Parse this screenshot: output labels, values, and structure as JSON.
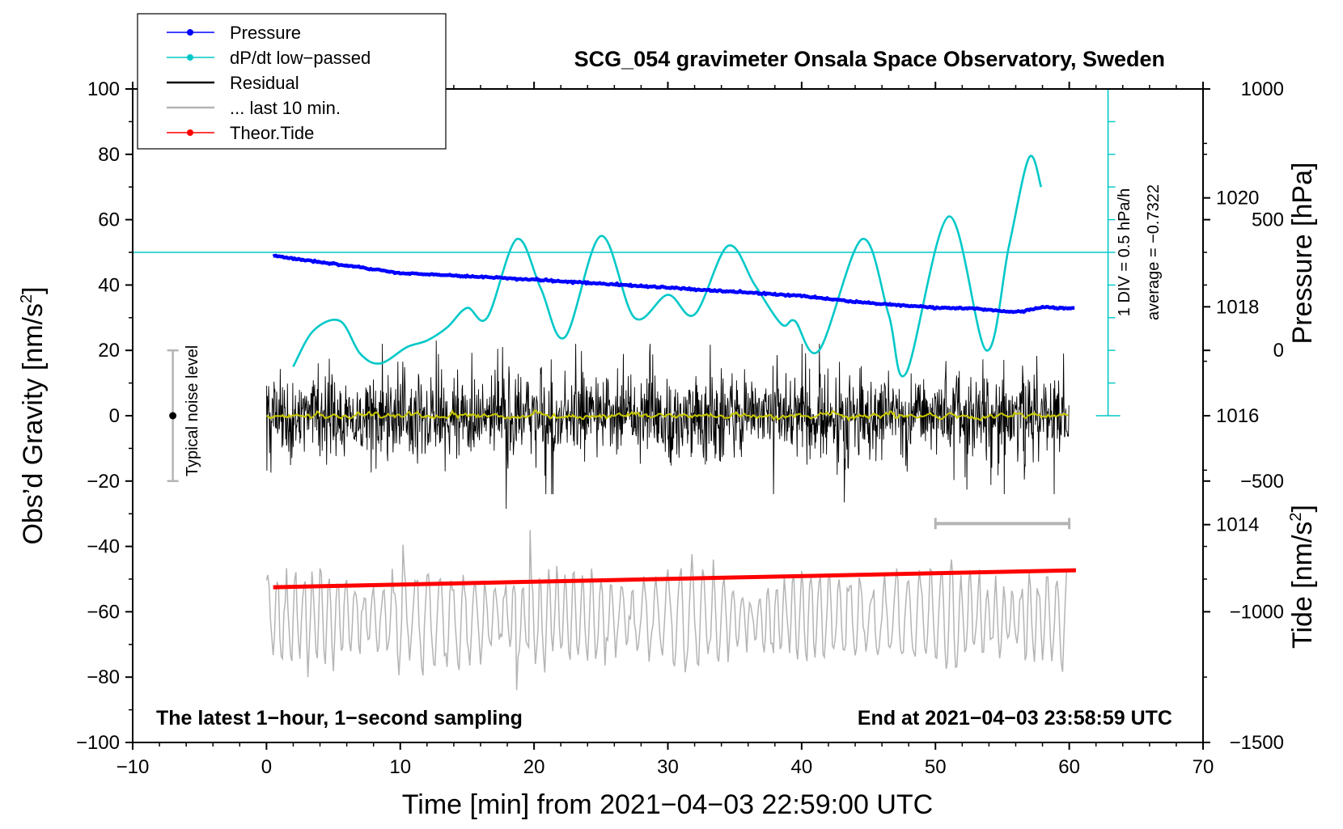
{
  "chart_data": {
    "type": "line",
    "title": "SCG_054 gravimeter Onsala Space Observatory, Sweden",
    "xlabel": "Time [min] from 2021−04−03 22:59:00 UTC",
    "ylabel_left": "Obs’d Gravity [nm/s",
    "ylabel_left_sup": "2",
    "ylabel_left_end": "]",
    "ylabel_pressure": "Pressure [hPa]",
    "ylabel_tide": "Tide [nm/s",
    "ylabel_tide_sup": "2",
    "ylabel_tide_end": "]",
    "xlim": [
      -10,
      70
    ],
    "ylim": [
      -100,
      100
    ],
    "x_ticks": [
      -10,
      0,
      10,
      20,
      30,
      40,
      50,
      60,
      70
    ],
    "x_tick_labels": [
      "−10",
      "0",
      "10",
      "20",
      "30",
      "40",
      "50",
      "60",
      "70"
    ],
    "y_ticks": [
      -100,
      -80,
      -60,
      -40,
      -20,
      0,
      20,
      40,
      60,
      80,
      100
    ],
    "y_tick_labels": [
      "−100",
      "−80",
      "−60",
      "−40",
      "−20",
      "0",
      "20",
      "40",
      "60",
      "80",
      "100"
    ],
    "pressure_axis": {
      "ticks": [
        1014,
        1016,
        1018,
        1020
      ],
      "tick_labels": [
        "1014",
        "1016",
        "1018",
        "1020"
      ],
      "ylim": [
        1010,
        1022
      ]
    },
    "tide_axis": {
      "ticks": [
        -1500,
        -1000,
        -500,
        0,
        500,
        1000
      ],
      "tick_labels": [
        "−1500",
        "−1000",
        "−500",
        "0",
        "500",
        "1000"
      ],
      "ylim": [
        -1500,
        1000
      ]
    },
    "legend": {
      "position": "top-left",
      "entries": [
        {
          "label": "Pressure",
          "color": "#0000ff",
          "marker": true
        },
        {
          "label": "dP/dt low−passed",
          "color": "#00c8c8",
          "marker": true
        },
        {
          "label": "Residual",
          "color": "#000000",
          "marker": false
        },
        {
          "label": "... last 10 min.",
          "color": "#b4b4b4",
          "marker": false
        },
        {
          "label": "Theor.Tide",
          "color": "#ff0000",
          "marker": true
        }
      ]
    },
    "series": [
      {
        "name": "Pressure",
        "color": "#0000ff",
        "units": "hPa",
        "x": [
          0.5,
          10,
          20,
          30,
          40,
          44,
          50,
          53,
          56,
          58,
          60.5
        ],
        "values": [
          1018.94,
          1018.62,
          1018.5,
          1018.35,
          1018.2,
          1018.09,
          1017.98,
          1017.97,
          1017.9,
          1017.99,
          1017.97
        ]
      },
      {
        "name": "dP/dt low−passed",
        "color": "#00c8c8",
        "units": "nm/s² equivalent scale",
        "x": [
          2,
          3.5,
          5.5,
          7,
          8.5,
          10.5,
          12,
          13.5,
          15,
          16.5,
          18.7,
          20.5,
          22.3,
          25,
          27.5,
          30,
          32,
          34.5,
          36.5,
          38.5,
          39.5,
          41.3,
          44.5,
          46.5,
          47.8,
          51,
          53.8,
          55.5,
          57,
          57.9
        ],
        "values": [
          15,
          26,
          29,
          19,
          16,
          21,
          23,
          27,
          33,
          30,
          54,
          39,
          24,
          55,
          30,
          37,
          31,
          52,
          40,
          28,
          29,
          20,
          54,
          31,
          13,
          61,
          20,
          52,
          79,
          70
        ]
      },
      {
        "name": "dP/dt reference line",
        "color": "#00c8c8",
        "constant": 50
      },
      {
        "name": "Residual",
        "color": "#000000",
        "units": "nm/s²",
        "x_range": [
          0,
          60
        ],
        "typical_amplitude": 20,
        "extremes": [
          {
            "x": 17.9,
            "y": -28.5
          },
          {
            "x": 43.2,
            "y": -26.5
          },
          {
            "x": 12.7,
            "y": 23
          }
        ]
      },
      {
        "name": "Residual smoothed",
        "color": "#c8c800",
        "units": "nm/s²",
        "x_range": [
          0,
          60
        ],
        "typical_amplitude": 1
      },
      {
        "name": "... last 10 min.",
        "color": "#b4b4b4",
        "units": "nm/s²",
        "x_range": [
          0,
          60
        ],
        "center": -62,
        "amplitude": 14,
        "extremes": [
          {
            "x": 19.7,
            "y": -35
          },
          {
            "x": 18.7,
            "y": -84
          },
          {
            "x": 10.2,
            "y": -39.5
          }
        ]
      },
      {
        "name": "Theor.Tide",
        "color": "#ff0000",
        "units": "nm/s²",
        "x": [
          0.5,
          60.5
        ],
        "values": [
          -52.5,
          -47.3
        ]
      }
    ],
    "noise_bar": {
      "label": "Typical noise level",
      "x": -7,
      "center": 0,
      "range": [
        -20,
        20
      ]
    },
    "last10_bar": {
      "x_range": [
        50,
        60
      ],
      "y": -33
    },
    "dpdt_scale_bar": {
      "x": 62.9,
      "y_range": [
        0,
        100
      ],
      "div_step": 10
    },
    "side_label_1": "1 DIV = 0.5 hPa/h",
    "side_label_2": "average = −0.7322",
    "note_left": "The latest 1−hour, 1−second sampling",
    "note_right": "End at 2021−04−03 23:58:59 UTC"
  }
}
